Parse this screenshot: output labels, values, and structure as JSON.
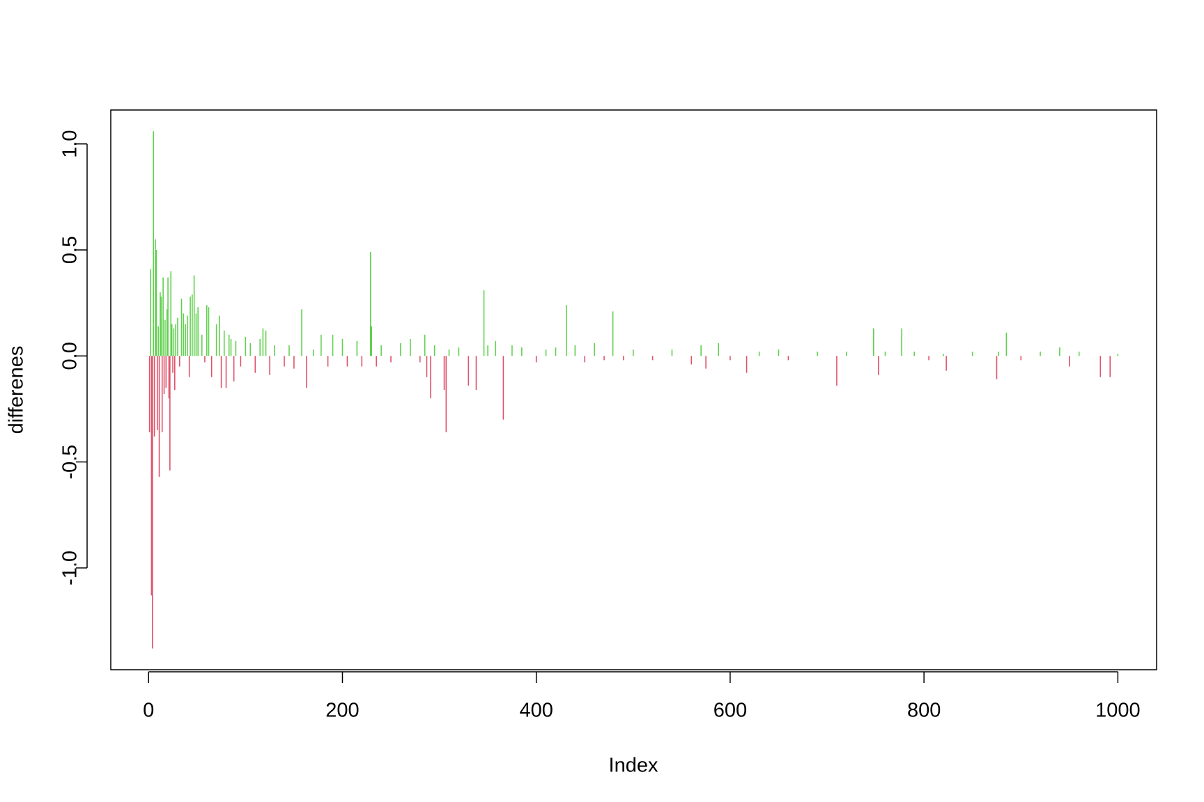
{
  "chart_data": {
    "type": "stem",
    "x_label": "Index",
    "y_label": "differenes",
    "pos_color": "#61D04F",
    "neg_color": "#DF536B",
    "xlim": [
      -39,
      1040
    ],
    "ylim": [
      -1.48,
      1.16
    ],
    "xticks": [
      0,
      200,
      400,
      600,
      800,
      1000
    ],
    "yticks": [
      {
        "value": -1.0,
        "label": "-1.0"
      },
      -0.5,
      {
        "value": 0.0,
        "label": "0.0"
      },
      0.5,
      {
        "value": 1.0,
        "label": "1.0"
      }
    ],
    "x": [
      1,
      2,
      3,
      4,
      5,
      6,
      7,
      8,
      9,
      10,
      11,
      12,
      13,
      14,
      15,
      16,
      17,
      18,
      19,
      20,
      21,
      22,
      23,
      24,
      25,
      26,
      27,
      28,
      30,
      32,
      34,
      36,
      38,
      40,
      42,
      43,
      45,
      47,
      49,
      51,
      55,
      58,
      60,
      62,
      65,
      70,
      73,
      75,
      78,
      80,
      83,
      85,
      88,
      90,
      95,
      100,
      105,
      110,
      115,
      118,
      121,
      125,
      130,
      140,
      145,
      150,
      158,
      163,
      170,
      178,
      185,
      190,
      200,
      205,
      215,
      220,
      229,
      230,
      235,
      240,
      250,
      260,
      270,
      280,
      285,
      287,
      291,
      295,
      305,
      307,
      310,
      320,
      330,
      338,
      346,
      350,
      358,
      366,
      375,
      385,
      400,
      410,
      420,
      431,
      440,
      450,
      460,
      470,
      479,
      490,
      500,
      520,
      540,
      560,
      570,
      575,
      588,
      600,
      617,
      630,
      650,
      660,
      690,
      710,
      720,
      748,
      753,
      760,
      777,
      790,
      805,
      820,
      823,
      850,
      875,
      877,
      885,
      900,
      920,
      940,
      950,
      960,
      982,
      992,
      1000
    ],
    "values": [
      -0.36,
      0.41,
      -1.13,
      -1.38,
      1.06,
      -0.38,
      0.55,
      0.5,
      -0.35,
      0.14,
      -0.57,
      0.3,
      0.28,
      -0.36,
      0.37,
      -0.18,
      0.17,
      -0.15,
      0.22,
      0.37,
      -0.2,
      -0.54,
      0.4,
      0.15,
      -0.08,
      0.13,
      -0.16,
      0.15,
      0.18,
      -0.05,
      0.27,
      0.2,
      0.15,
      0.19,
      -0.1,
      0.28,
      0.29,
      0.38,
      0.2,
      0.23,
      0.1,
      -0.03,
      0.24,
      0.23,
      -0.1,
      0.15,
      0.19,
      -0.15,
      0.12,
      -0.15,
      0.1,
      0.08,
      -0.12,
      0.07,
      -0.05,
      0.09,
      0.06,
      -0.08,
      0.08,
      0.13,
      0.12,
      -0.09,
      0.05,
      -0.05,
      0.05,
      -0.06,
      0.22,
      -0.15,
      0.03,
      0.1,
      -0.05,
      0.1,
      0.08,
      -0.05,
      0.07,
      -0.05,
      0.49,
      0.14,
      -0.05,
      0.05,
      -0.03,
      0.06,
      0.08,
      -0.03,
      0.1,
      -0.1,
      -0.2,
      0.05,
      -0.16,
      -0.36,
      0.03,
      0.04,
      -0.14,
      -0.16,
      0.31,
      0.05,
      0.07,
      -0.3,
      0.05,
      0.04,
      -0.03,
      0.03,
      0.04,
      0.24,
      0.05,
      -0.03,
      0.06,
      -0.02,
      0.21,
      -0.02,
      0.03,
      -0.02,
      0.03,
      -0.04,
      0.05,
      -0.06,
      0.06,
      -0.02,
      -0.08,
      0.02,
      0.03,
      -0.02,
      0.02,
      -0.14,
      0.02,
      0.13,
      -0.09,
      0.02,
      0.13,
      0.02,
      -0.02,
      0.01,
      -0.07,
      0.02,
      -0.11,
      0.02,
      0.11,
      -0.02,
      0.02,
      0.04,
      -0.05,
      0.02,
      -0.1,
      -0.1,
      0.01
    ]
  }
}
